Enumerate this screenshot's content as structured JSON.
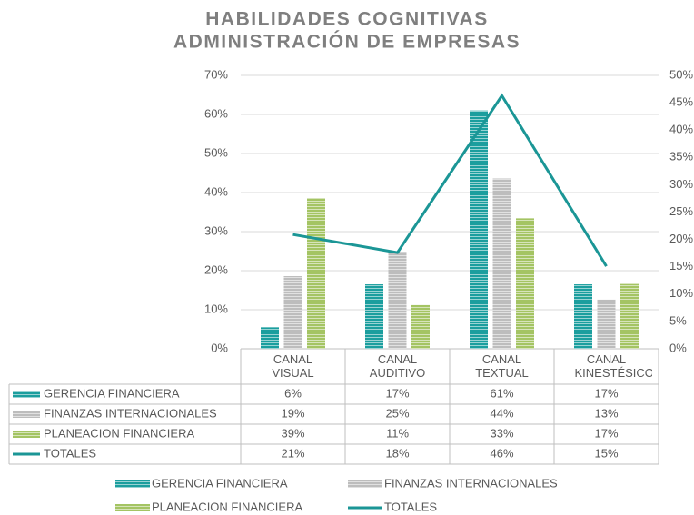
{
  "chart_data": {
    "type": "bar-line",
    "title": [
      "HABILIDADES COGNITIVAS",
      "ADMINISTRACIÓN DE EMPRESAS"
    ],
    "categories": [
      "CANAL VISUAL",
      "CANAL AUDITIVO",
      "CANAL TEXTUAL",
      "CANAL KINESTÉSICO"
    ],
    "series": [
      {
        "name": "GERENCIA FINANCIERA",
        "type": "bar",
        "color": "#1b9e9e",
        "values": [
          5.5,
          16.5,
          61,
          16.5
        ],
        "value_labels": [
          "6%",
          "17%",
          "61%",
          "17%"
        ]
      },
      {
        "name": "FINANZAS INTERNACIONALES",
        "type": "bar",
        "color": "#bdbdbd",
        "values": [
          18.6,
          24.8,
          43.6,
          12.6
        ],
        "value_labels": [
          "19%",
          "25%",
          "44%",
          "13%"
        ]
      },
      {
        "name": "PLANEACION FINANCIERA",
        "type": "bar",
        "color": "#a4c463",
        "values": [
          38.6,
          11.2,
          33.4,
          16.6
        ],
        "value_labels": [
          "39%",
          "11%",
          "33%",
          "17%"
        ]
      },
      {
        "name": "TOTALES",
        "type": "line",
        "axis": "y2",
        "color": "#1b9696",
        "values": [
          20.9,
          17.6,
          46.3,
          15.1
        ],
        "value_labels": [
          "21%",
          "18%",
          "46%",
          "15%"
        ]
      }
    ],
    "ylim": [
      0,
      70
    ],
    "yticks": [
      {
        "value": 0,
        "label": "0%"
      },
      {
        "value": 10,
        "label": "10%"
      },
      {
        "value": 20,
        "label": "20%"
      },
      {
        "value": 30,
        "label": "30%"
      },
      {
        "value": 40,
        "label": "40%"
      },
      {
        "value": 50,
        "label": "50%"
      },
      {
        "value": 60,
        "label": "60%"
      },
      {
        "value": 70,
        "label": "70%"
      }
    ],
    "y2lim": [
      0,
      50
    ],
    "y2ticks": [
      {
        "value": 0,
        "label": "0%"
      },
      {
        "value": 5,
        "label": "5%"
      },
      {
        "value": 10,
        "label": "10%"
      },
      {
        "value": 15,
        "label": "15%"
      },
      {
        "value": 20,
        "label": "20%"
      },
      {
        "value": 25,
        "label": "25%"
      },
      {
        "value": 30,
        "label": "30%"
      },
      {
        "value": 35,
        "label": "35%"
      },
      {
        "value": 40,
        "label": "40%"
      },
      {
        "value": 45,
        "label": "45%"
      },
      {
        "value": 50,
        "label": "50%"
      }
    ],
    "grid": true
  }
}
